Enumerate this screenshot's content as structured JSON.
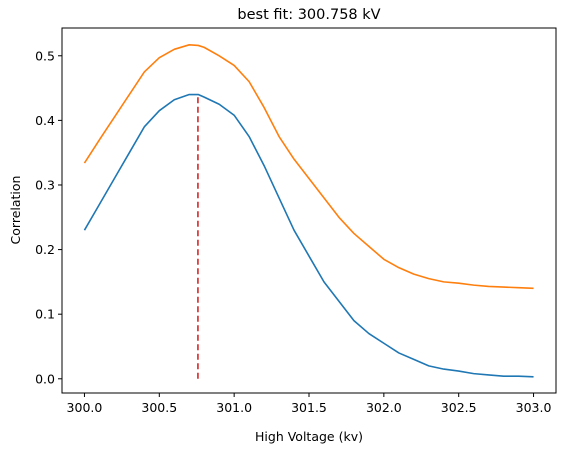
{
  "chart_data": {
    "type": "line",
    "title": "best fit: 300.758 kV",
    "xlabel": "High Voltage (kv)",
    "ylabel": "Correlation",
    "xlim": [
      299.85,
      303.15
    ],
    "ylim": [
      -0.022,
      0.543
    ],
    "xticks": [
      300.0,
      300.5,
      301.0,
      301.5,
      302.0,
      302.5,
      303.0
    ],
    "xtick_labels": [
      "300.0",
      "300.5",
      "301.0",
      "301.5",
      "302.0",
      "302.5",
      "303.0"
    ],
    "yticks": [
      0.0,
      0.1,
      0.2,
      0.3,
      0.4,
      0.5
    ],
    "ytick_labels": [
      "0.0",
      "0.1",
      "0.2",
      "0.3",
      "0.4",
      "0.5"
    ],
    "grid": false,
    "legend": false,
    "series": [
      {
        "color": "#1f77b4",
        "x": [
          300.0,
          300.1,
          300.2,
          300.3,
          300.4,
          300.5,
          300.6,
          300.7,
          300.76,
          300.8,
          300.9,
          301.0,
          301.1,
          301.2,
          301.3,
          301.4,
          301.5,
          301.6,
          301.7,
          301.8,
          301.9,
          302.0,
          302.1,
          302.2,
          302.3,
          302.4,
          302.5,
          302.6,
          302.7,
          302.8,
          302.9,
          303.0
        ],
        "values": [
          0.23,
          0.27,
          0.31,
          0.35,
          0.39,
          0.415,
          0.432,
          0.44,
          0.44,
          0.436,
          0.425,
          0.408,
          0.375,
          0.33,
          0.28,
          0.23,
          0.19,
          0.15,
          0.12,
          0.09,
          0.07,
          0.055,
          0.04,
          0.03,
          0.02,
          0.015,
          0.012,
          0.008,
          0.006,
          0.004,
          0.004,
          0.003
        ]
      },
      {
        "color": "#ff7f0e",
        "x": [
          300.0,
          300.1,
          300.2,
          300.3,
          300.4,
          300.5,
          300.6,
          300.7,
          300.76,
          300.8,
          300.9,
          301.0,
          301.1,
          301.2,
          301.3,
          301.4,
          301.5,
          301.6,
          301.7,
          301.8,
          301.9,
          302.0,
          302.1,
          302.2,
          302.3,
          302.4,
          302.5,
          302.6,
          302.7,
          302.8,
          302.9,
          303.0
        ],
        "values": [
          0.334,
          0.37,
          0.405,
          0.44,
          0.475,
          0.497,
          0.51,
          0.517,
          0.516,
          0.513,
          0.5,
          0.485,
          0.46,
          0.42,
          0.375,
          0.34,
          0.31,
          0.28,
          0.25,
          0.225,
          0.205,
          0.185,
          0.172,
          0.162,
          0.155,
          0.15,
          0.148,
          0.145,
          0.143,
          0.142,
          0.141,
          0.14
        ]
      }
    ],
    "vline": {
      "x": 300.758,
      "y_range": [
        0.0,
        0.44
      ],
      "color": "#d62728",
      "style": "dashed"
    }
  }
}
